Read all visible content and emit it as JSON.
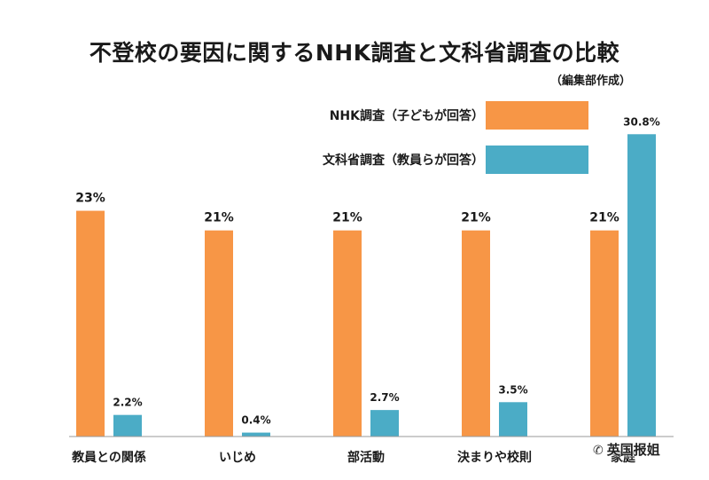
{
  "chart_data": {
    "type": "bar",
    "title": "不登校の要因に関するNHK調査と文科省調査の比較",
    "subtitle": "（編集部作成）",
    "categories": [
      "教員との関係",
      "いじめ",
      "部活動",
      "決まりや校則",
      "家庭"
    ],
    "series": [
      {
        "name": "NHK調査（子どもが回答）",
        "color": "#f79646",
        "values": [
          23,
          21,
          21,
          21,
          21
        ]
      },
      {
        "name": "文科省調査（教員らが回答）",
        "color": "#4bacc6",
        "values": [
          2.2,
          0.4,
          2.7,
          3.5,
          30.8
        ]
      }
    ],
    "data_labels": [
      [
        "23%",
        "21%",
        "21%",
        "21%",
        "21%"
      ],
      [
        "2.2%",
        "0.4%",
        "2.7%",
        "3.5%",
        "30.8%"
      ]
    ],
    "ylim": [
      0,
      32
    ],
    "grid": false,
    "legend_position": "top-right"
  },
  "watermark": {
    "text": "英国报姐",
    "icon": "wechat-icon"
  }
}
